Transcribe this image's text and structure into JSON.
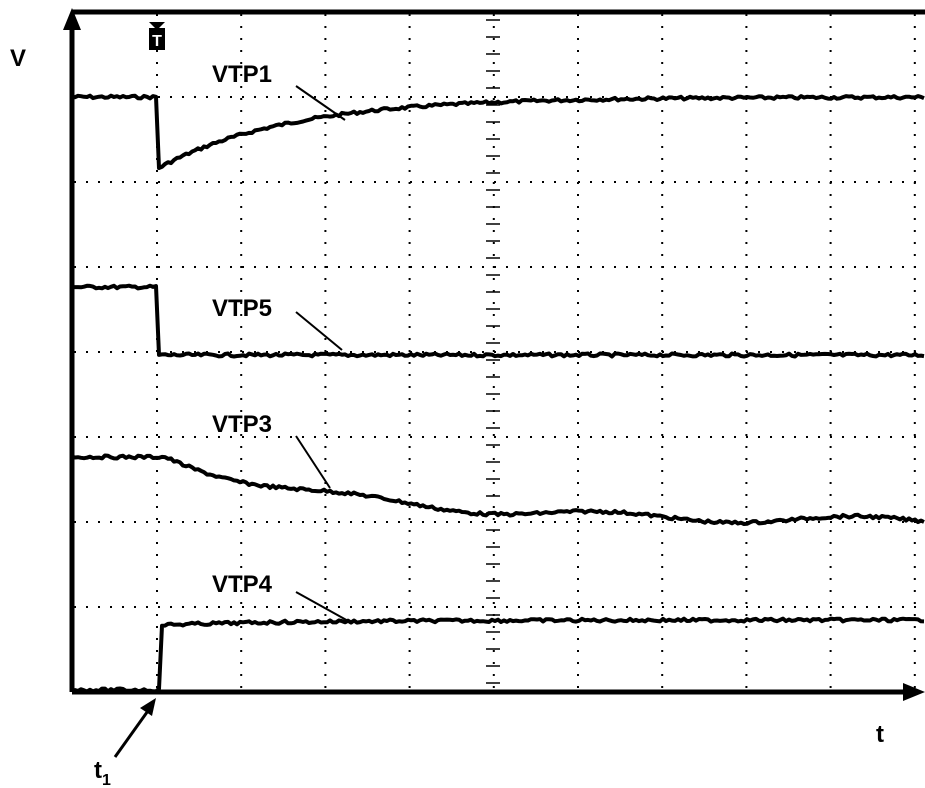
{
  "axes": {
    "y_label": "V",
    "x_label": "t"
  },
  "trigger": "T",
  "traces": [
    {
      "label": "VTP1"
    },
    {
      "label": "VTP5"
    },
    {
      "label": "VTP3"
    },
    {
      "label": "VTP4"
    }
  ],
  "time_marker": {
    "label": "t",
    "subscript": "1"
  }
}
